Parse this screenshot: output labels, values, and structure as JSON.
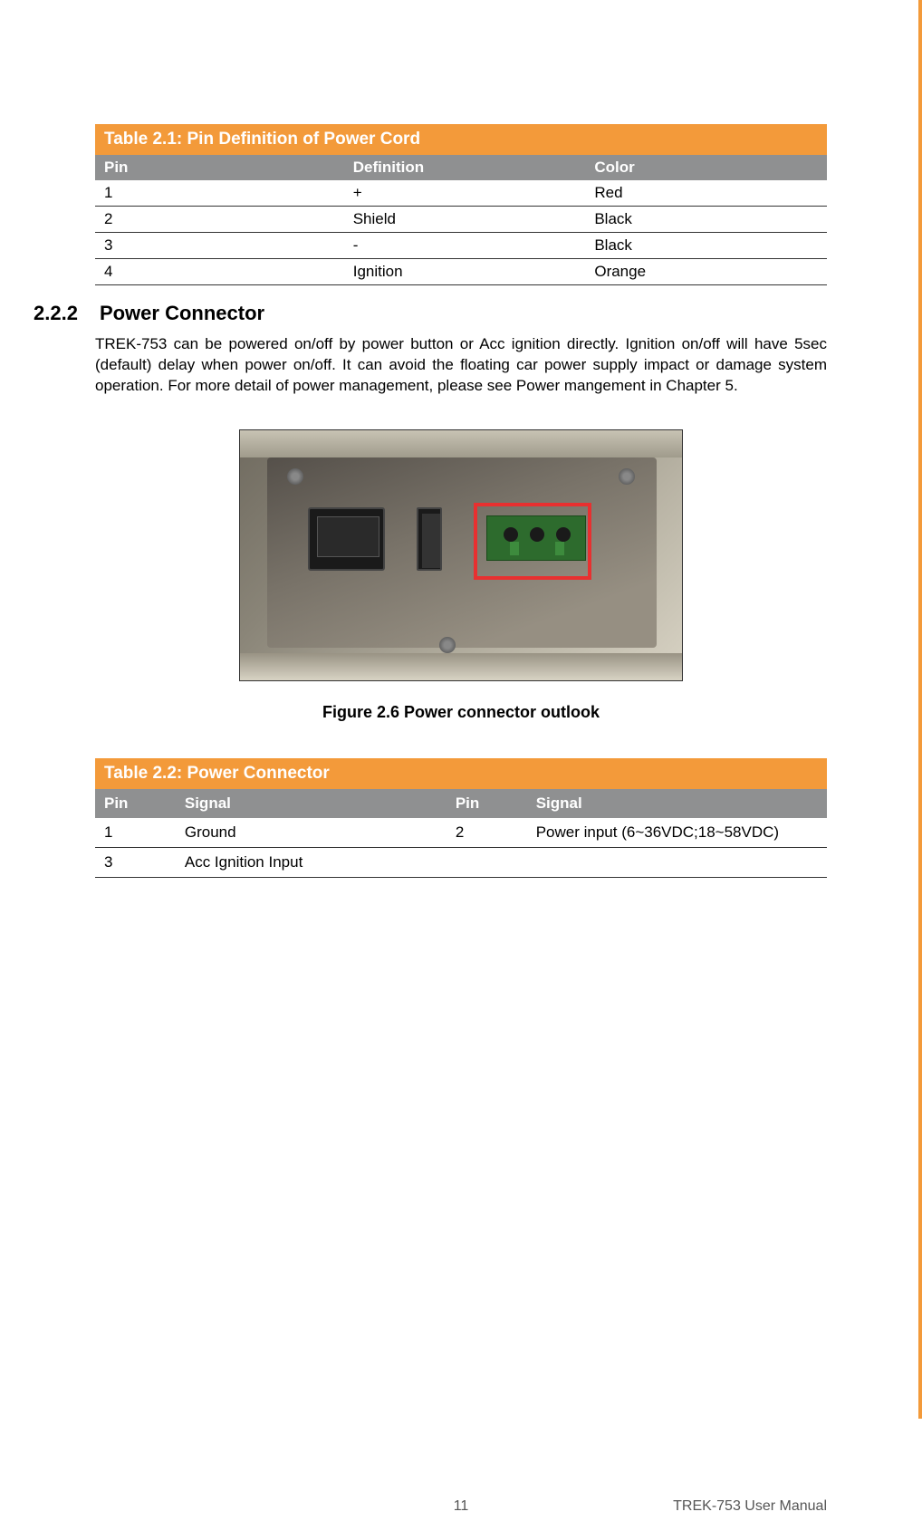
{
  "table1": {
    "title": "Table 2.1: Pin Definition of Power Cord",
    "headers": {
      "pin": "Pin",
      "definition": "Definition",
      "color": "Color"
    },
    "rows": [
      {
        "pin": "1",
        "definition": "+",
        "color": "Red"
      },
      {
        "pin": "2",
        "definition": "Shield",
        "color": "Black"
      },
      {
        "pin": "3",
        "definition": "-",
        "color": "Black"
      },
      {
        "pin": "4",
        "definition": "Ignition",
        "color": "Orange"
      }
    ],
    "title_bg": "#f39a3a",
    "header_bg": "#8f9091"
  },
  "section": {
    "number": "2.2.2",
    "title": "Power Connector",
    "body": "TREK-753 can be powered on/off by power button or Acc ignition directly. Ignition on/off will have 5sec (default) delay when power on/off. It can avoid the floating car power supply impact or damage system operation. For more detail of power management, please see Power mangement in Chapter 5."
  },
  "figure": {
    "caption": "Figure 2.6 Power connector outlook"
  },
  "table2": {
    "title": "Table 2.2: Power Connector",
    "headers": {
      "pin1": "Pin",
      "signal1": "Signal",
      "pin2": "Pin",
      "signal2": "Signal"
    },
    "rows": [
      {
        "pin1": "1",
        "signal1": "Ground",
        "pin2": "2",
        "signal2": "Power input (6~36VDC;18~58VDC)"
      },
      {
        "pin1": "3",
        "signal1": "Acc Ignition Input",
        "pin2": "",
        "signal2": ""
      }
    ]
  },
  "footer": {
    "page": "11",
    "doc": "TREK-753 User Manual"
  },
  "colors": {
    "accent": "#f39a3a",
    "header_gray": "#8f9091",
    "highlight_red": "#e83030",
    "connector_green": "#2d6b2d"
  }
}
